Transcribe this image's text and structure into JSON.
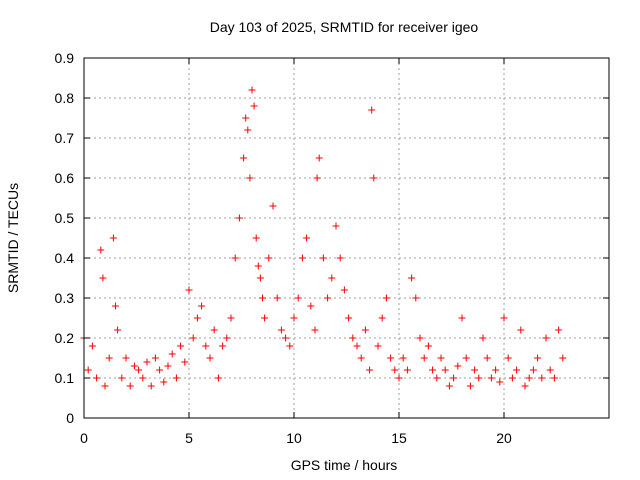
{
  "chart_data": {
    "type": "scatter",
    "title": "Day 103 of 2025, SRMTID for receiver igeo",
    "xlabel": "GPS time / hours",
    "ylabel": "SRMTID / TECUs",
    "xlim": [
      0,
      25
    ],
    "ylim": [
      0,
      0.9
    ],
    "xticks": [
      0,
      5,
      10,
      15,
      20
    ],
    "xtick_labels": [
      "0",
      "5",
      "10",
      "15",
      "20"
    ],
    "yticks": [
      0,
      0.1,
      0.2,
      0.3,
      0.4,
      0.5,
      0.6,
      0.7,
      0.8,
      0.9
    ],
    "ytick_labels": [
      "0",
      "0.1",
      "0.2",
      "0.3",
      "0.4",
      "0.5",
      "0.6",
      "0.7",
      "0.8",
      "0.9"
    ],
    "grid": true,
    "marker": "+",
    "marker_color": "#ff0000",
    "series": [
      {
        "name": "SRMTID",
        "x": [
          0.0,
          0.2,
          0.4,
          0.6,
          0.8,
          0.9,
          1.0,
          1.2,
          1.4,
          1.5,
          1.6,
          1.8,
          2.0,
          2.2,
          2.4,
          2.6,
          2.8,
          3.0,
          3.2,
          3.4,
          3.6,
          3.8,
          4.0,
          4.2,
          4.4,
          4.6,
          4.8,
          5.0,
          5.2,
          5.4,
          5.6,
          5.8,
          6.0,
          6.2,
          6.4,
          6.6,
          6.8,
          7.0,
          7.2,
          7.4,
          7.6,
          7.7,
          7.8,
          7.9,
          8.0,
          8.1,
          8.2,
          8.3,
          8.4,
          8.5,
          8.6,
          8.8,
          9.0,
          9.2,
          9.4,
          9.6,
          9.8,
          10.0,
          10.2,
          10.4,
          10.6,
          10.8,
          11.0,
          11.1,
          11.2,
          11.4,
          11.6,
          11.8,
          12.0,
          12.2,
          12.4,
          12.6,
          12.8,
          13.0,
          13.2,
          13.4,
          13.6,
          13.7,
          13.8,
          14.0,
          14.2,
          14.4,
          14.6,
          14.8,
          15.0,
          15.2,
          15.4,
          15.6,
          15.8,
          16.0,
          16.2,
          16.4,
          16.6,
          16.8,
          17.0,
          17.2,
          17.4,
          17.6,
          17.8,
          18.0,
          18.2,
          18.4,
          18.6,
          18.8,
          19.0,
          19.2,
          19.4,
          19.6,
          19.8,
          20.0,
          20.2,
          20.4,
          20.6,
          20.8,
          21.0,
          21.2,
          21.4,
          21.6,
          21.8,
          22.0,
          22.2,
          22.4,
          22.6,
          22.8
        ],
        "y": [
          0.2,
          0.12,
          0.18,
          0.1,
          0.42,
          0.35,
          0.08,
          0.15,
          0.45,
          0.28,
          0.22,
          0.1,
          0.15,
          0.08,
          0.13,
          0.12,
          0.1,
          0.14,
          0.08,
          0.15,
          0.12,
          0.09,
          0.13,
          0.16,
          0.1,
          0.18,
          0.14,
          0.32,
          0.2,
          0.25,
          0.28,
          0.18,
          0.15,
          0.22,
          0.1,
          0.18,
          0.2,
          0.25,
          0.4,
          0.5,
          0.65,
          0.75,
          0.72,
          0.6,
          0.82,
          0.78,
          0.45,
          0.38,
          0.35,
          0.3,
          0.25,
          0.4,
          0.53,
          0.3,
          0.22,
          0.2,
          0.18,
          0.25,
          0.3,
          0.4,
          0.45,
          0.28,
          0.22,
          0.6,
          0.65,
          0.4,
          0.3,
          0.35,
          0.48,
          0.4,
          0.32,
          0.25,
          0.2,
          0.18,
          0.15,
          0.22,
          0.12,
          0.77,
          0.6,
          0.18,
          0.25,
          0.3,
          0.15,
          0.12,
          0.1,
          0.15,
          0.12,
          0.35,
          0.3,
          0.2,
          0.15,
          0.18,
          0.12,
          0.1,
          0.15,
          0.12,
          0.08,
          0.1,
          0.13,
          0.25,
          0.15,
          0.08,
          0.12,
          0.1,
          0.2,
          0.15,
          0.1,
          0.12,
          0.09,
          0.25,
          0.15,
          0.1,
          0.12,
          0.22,
          0.08,
          0.1,
          0.12,
          0.15,
          0.1,
          0.2,
          0.12,
          0.1,
          0.22,
          0.15
        ]
      }
    ]
  }
}
